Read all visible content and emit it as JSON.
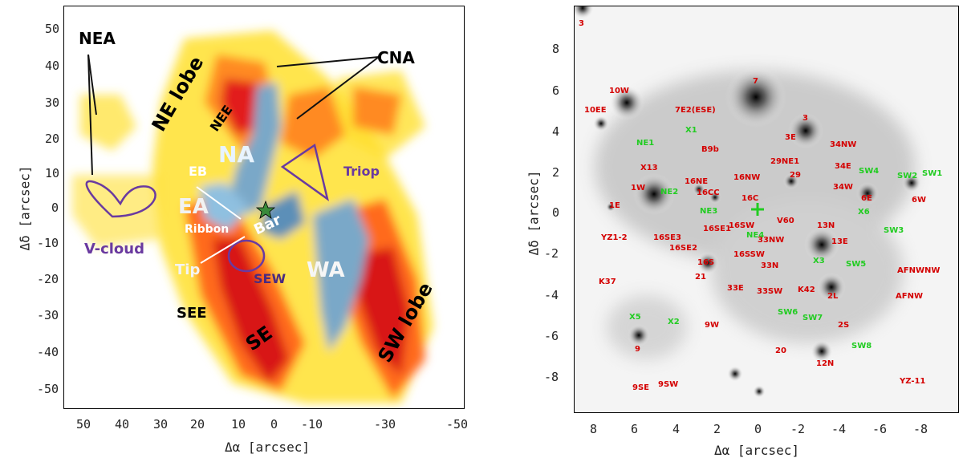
{
  "left": {
    "xlabel": "Δα [arcsec]",
    "ylabel": "Δδ [arcsec]",
    "xticks": [
      "50",
      "40",
      "30",
      "20",
      "10",
      "0",
      "-10",
      "-30",
      "-50"
    ],
    "yticks": [
      "50",
      "40",
      "30",
      "20",
      "10",
      "0",
      "-10",
      "-20",
      "-30",
      "-40",
      "-50"
    ],
    "labels": {
      "nea": "NEA",
      "ne_lobe": "NE lobe",
      "nee": "NEE",
      "cna": "CNA",
      "na": "NA",
      "eb": "EB",
      "ea": "EA",
      "ribbon": "Ribbon",
      "bar": "Bar",
      "triop": "Triop",
      "v_cloud": "V-cloud",
      "tip": "Tip",
      "sew": "SEW",
      "wa": "WA",
      "see": "SEE",
      "se": "SE",
      "sw_lobe": "SW lobe"
    }
  },
  "right": {
    "xlabel": "Δα [arcsec]",
    "ylabel": "Δδ [arcsec]",
    "xticks": [
      "8",
      "6",
      "4",
      "2",
      "0",
      "-2",
      "-4",
      "-6",
      "-8"
    ],
    "yticks": [
      "8",
      "6",
      "4",
      "2",
      "0",
      "-2",
      "-4",
      "-6",
      "-8"
    ],
    "red_sources": [
      "3",
      "10W",
      "10EE",
      "7",
      "7E2(ESE)",
      "3",
      "3E",
      "B9b",
      "34NW",
      "X13",
      "29NE1",
      "34E",
      "16NE",
      "16NW",
      "1W",
      "29",
      "34W",
      "6E",
      "16CC",
      "16C",
      "6W",
      "1E",
      "V60",
      "13N",
      "YZ1-2",
      "16SE3",
      "16SE1",
      "16SW",
      "33NW",
      "13E",
      "16SE2",
      "16SSW",
      "16S",
      "33N",
      "AFNWNW",
      "K37",
      "21",
      "33E",
      "33SW",
      "K42",
      "2L",
      "AFNW",
      "9W",
      "2S",
      "9",
      "20",
      "12N",
      "9SE",
      "9SW",
      "YZ-11"
    ],
    "green_sources": [
      "X1",
      "NE1",
      "SW4",
      "SW2",
      "SW1",
      "NE2",
      "NE3",
      "X6",
      "SW3",
      "NE4",
      "X3",
      "SW5",
      "SW6",
      "SW7",
      "X5",
      "X2",
      "SW8"
    ]
  }
}
